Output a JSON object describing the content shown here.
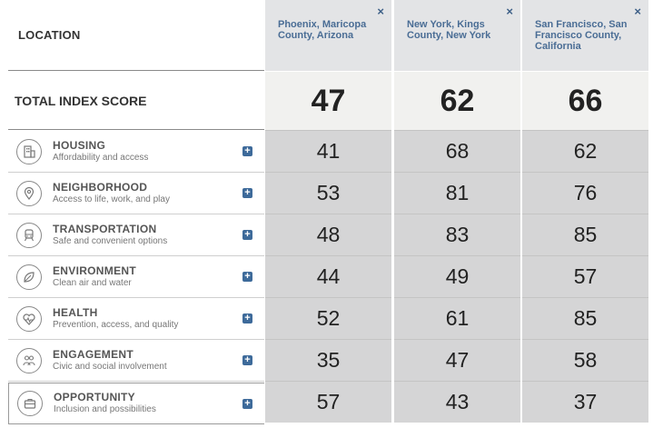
{
  "header": {
    "location_label": "LOCATION"
  },
  "total": {
    "label": "TOTAL INDEX SCORE"
  },
  "categories": [
    {
      "name": "HOUSING",
      "desc": "Affordability and access",
      "icon": "building-icon"
    },
    {
      "name": "NEIGHBORHOOD",
      "desc": "Access to life, work, and play",
      "icon": "map-pin-icon"
    },
    {
      "name": "TRANSPORTATION",
      "desc": "Safe and convenient options",
      "icon": "train-icon"
    },
    {
      "name": "ENVIRONMENT",
      "desc": "Clean air and water",
      "icon": "leaf-icon"
    },
    {
      "name": "HEALTH",
      "desc": "Prevention, access, and quality",
      "icon": "heart-pulse-icon"
    },
    {
      "name": "ENGAGEMENT",
      "desc": "Civic and social involvement",
      "icon": "people-icon"
    },
    {
      "name": "OPPORTUNITY",
      "desc": "Inclusion and possibilities",
      "icon": "briefcase-icon"
    }
  ],
  "locations": [
    {
      "name": "Phoenix, Maricopa County, Arizona",
      "close": "×",
      "total": "47",
      "scores": [
        "41",
        "53",
        "48",
        "44",
        "52",
        "35",
        "57"
      ]
    },
    {
      "name": "New York, Kings County, New York",
      "close": "×",
      "total": "62",
      "scores": [
        "68",
        "81",
        "83",
        "49",
        "61",
        "47",
        "43"
      ]
    },
    {
      "name": "San Francisco, San Francisco County, California",
      "close": "×",
      "total": "66",
      "scores": [
        "62",
        "76",
        "85",
        "57",
        "85",
        "58",
        "37"
      ]
    }
  ],
  "expand_symbol": "+",
  "colors": {
    "accent": "#3d6a9a",
    "header_bg": "#e3e4e6",
    "cell_bg": "#d5d5d6"
  }
}
